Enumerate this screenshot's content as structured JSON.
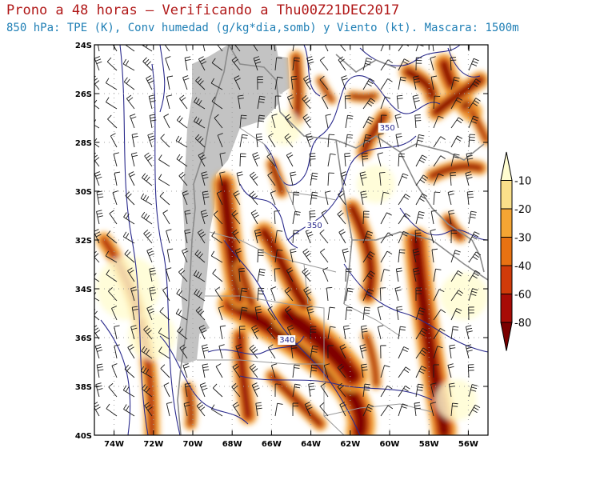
{
  "header": {
    "title": "Prono a 48 horas – Verificando a Thu00Z21DEC2017",
    "subtitle": "850 hPa: TPE (K), Conv humedad (g/kg*dia,somb) y Viento (kt). Mascara: 1500m"
  },
  "map": {
    "lon_range": [
      -75,
      -55
    ],
    "lat_range": [
      -40,
      -24
    ],
    "lat_ticks": [
      {
        "value": -24,
        "label": "24S"
      },
      {
        "value": -26,
        "label": "26S"
      },
      {
        "value": -28,
        "label": "28S"
      },
      {
        "value": -30,
        "label": "30S"
      },
      {
        "value": -32,
        "label": "32S"
      },
      {
        "value": -34,
        "label": "34S"
      },
      {
        "value": -36,
        "label": "36S"
      },
      {
        "value": -38,
        "label": "38S"
      },
      {
        "value": -40,
        "label": "40S"
      }
    ],
    "lon_ticks": [
      {
        "value": -74,
        "label": "74W"
      },
      {
        "value": -72,
        "label": "72W"
      },
      {
        "value": -70,
        "label": "70W"
      },
      {
        "value": -68,
        "label": "68W"
      },
      {
        "value": -66,
        "label": "66W"
      },
      {
        "value": -64,
        "label": "64W"
      },
      {
        "value": -62,
        "label": "62W"
      },
      {
        "value": -60,
        "label": "60W"
      },
      {
        "value": -58,
        "label": "58W"
      },
      {
        "value": -56,
        "label": "56W"
      }
    ],
    "contour_labels": [
      {
        "text": "350",
        "lon": -60.5,
        "lat": -27.5
      },
      {
        "text": "350",
        "lon": -64.2,
        "lat": -31.5
      },
      {
        "text": "340",
        "lon": -65.6,
        "lat": -36.2
      }
    ],
    "colors": {
      "mask": "#c3c3c3",
      "contour": "#2a2a8c",
      "borders": "#8a8a8a",
      "grid": "#a0a0a0"
    }
  },
  "colorbar": {
    "levels": [
      "-10",
      "-20",
      "-30",
      "-40",
      "-60",
      "-80"
    ],
    "colors": [
      "#fffdd0",
      "#fbe08a",
      "#f5a533",
      "#e87212",
      "#d03b0a",
      "#a80c06",
      "#7a0000"
    ]
  }
}
